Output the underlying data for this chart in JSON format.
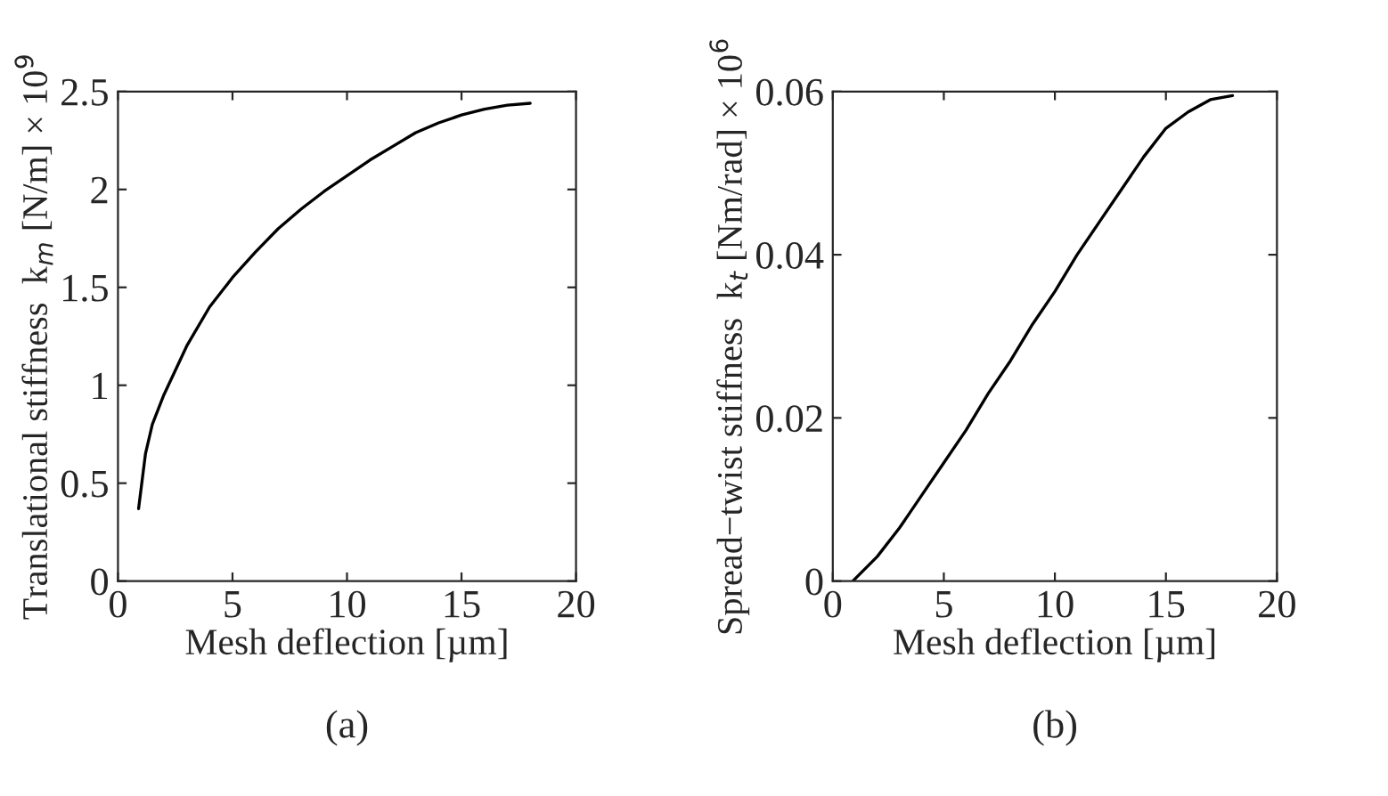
{
  "chart_data": [
    {
      "type": "line",
      "xlabel": "Mesh deflection [µm]",
      "ylabel": "Translational stiffness  k$_{m}$ [N/m] × 10$^{9}$",
      "annotations": [
        "(a)"
      ],
      "x": [
        0.9,
        1.2,
        1.5,
        2,
        3,
        4,
        5,
        6,
        7,
        8,
        9,
        10,
        11,
        12,
        13,
        14,
        15,
        16,
        17,
        18
      ],
      "series": [
        {
          "color": "#000000",
          "values": [
            0.37,
            0.65,
            0.8,
            0.95,
            1.2,
            1.4,
            1.55,
            1.68,
            1.8,
            1.9,
            1.99,
            2.07,
            2.15,
            2.22,
            2.29,
            2.34,
            2.38,
            2.41,
            2.43,
            2.44
          ]
        }
      ],
      "xlim": [
        0,
        20
      ],
      "xticks": [
        0,
        5,
        10,
        15,
        20
      ],
      "ylim": [
        0,
        2.5
      ],
      "yticks": [
        0,
        0.5,
        1,
        1.5,
        2,
        2.5
      ],
      "grid": false,
      "legend": false,
      "line_style": "solid",
      "marker": "none"
    },
    {
      "type": "line",
      "xlabel": "Mesh deflection [µm]",
      "ylabel": "Spread−twist stiffness  k$_{t}$ [Nm/rad] × 10$^{6}$",
      "annotations": [
        "(b)"
      ],
      "x": [
        0.9,
        2,
        3,
        4,
        5,
        6,
        7,
        8,
        9,
        10,
        11,
        12,
        13,
        14,
        15,
        16,
        17,
        18
      ],
      "series": [
        {
          "color": "#000000",
          "values": [
            0,
            0.003,
            0.0065,
            0.0105,
            0.0145,
            0.0185,
            0.023,
            0.027,
            0.0315,
            0.0355,
            0.04,
            0.044,
            0.048,
            0.052,
            0.0555,
            0.0575,
            0.059,
            0.0595
          ]
        }
      ],
      "xlim": [
        0,
        20
      ],
      "xticks": [
        0,
        5,
        10,
        15,
        20
      ],
      "ylim": [
        0,
        0.06
      ],
      "yticks": [
        0,
        0.02,
        0.04,
        0.06
      ],
      "grid": false,
      "legend": false,
      "line_style": "solid",
      "marker": "none"
    }
  ]
}
